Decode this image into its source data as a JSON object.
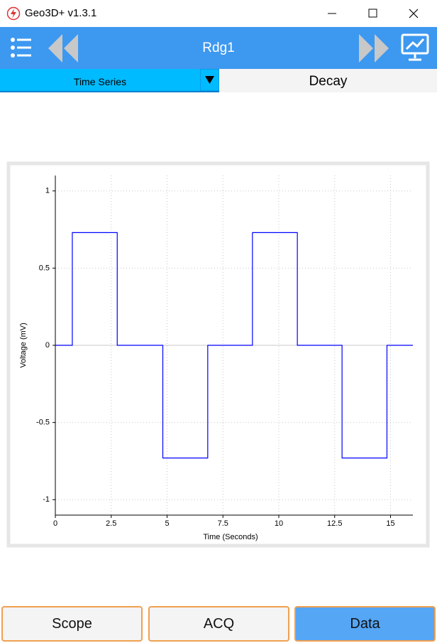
{
  "window": {
    "title": "Geo3D+ v1.3.1"
  },
  "toolbar": {
    "title": "Rdg1"
  },
  "tabs": {
    "selector": "Time Series",
    "active": "Decay"
  },
  "chart_data": {
    "type": "line",
    "x_label": "Time (Seconds)",
    "y_label": "Voltage (mV)",
    "x": [
      0,
      0.76,
      0.76,
      2.77,
      2.77,
      4.81,
      4.81,
      6.82,
      6.82,
      8.82,
      8.82,
      10.83,
      10.83,
      12.83,
      12.83,
      14.84,
      14.84,
      16
    ],
    "values": [
      0,
      0,
      0.73,
      0.73,
      0,
      0,
      -0.73,
      -0.73,
      0,
      0,
      0.73,
      0.73,
      0,
      0,
      -0.73,
      -0.73,
      0,
      0
    ],
    "color": "#0000ff",
    "xlim": [
      0,
      16
    ],
    "ylim": [
      -1.1,
      1.1
    ],
    "xticks": [
      0,
      2.5,
      5,
      7.5,
      10,
      12.5,
      15
    ],
    "yticks": [
      -1,
      -0.5,
      0,
      0.5,
      1
    ],
    "grid": true
  },
  "buttons": [
    "Scope",
    "ACQ",
    "Data"
  ]
}
